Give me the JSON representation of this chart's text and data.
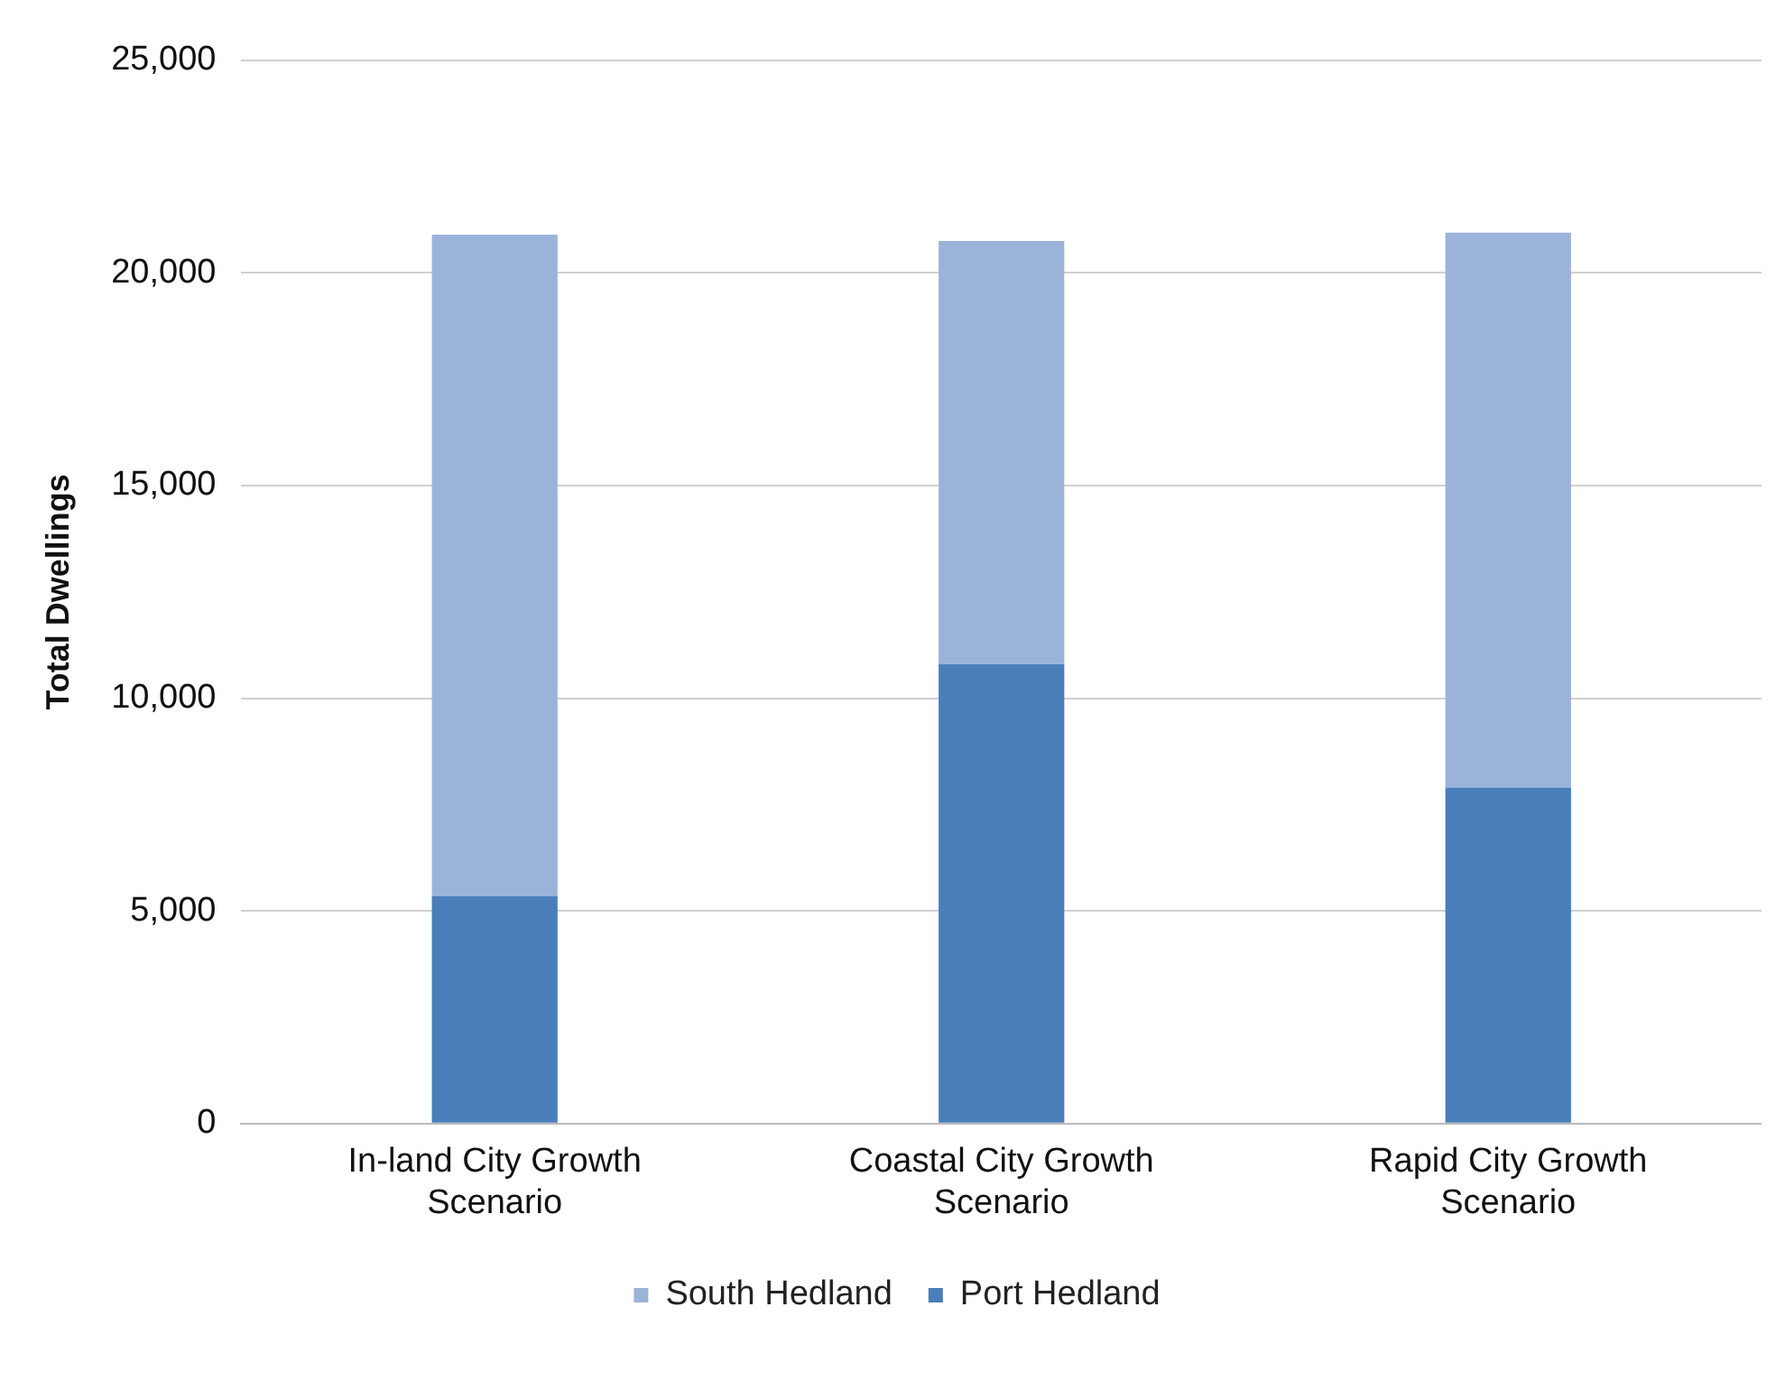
{
  "chart_data": {
    "type": "bar",
    "stacked": true,
    "ylabel": "Total Dwellings",
    "categories": [
      "In-land City Growth Scenario",
      "Coastal City Growth Scenario",
      "Rapid City Growth Scenario"
    ],
    "series": [
      {
        "name": "Port Hedland",
        "color": "#4a7ebb",
        "values": [
          5350,
          10800,
          7900
        ]
      },
      {
        "name": "South Hedland",
        "color": "#9bb3d9",
        "values": [
          15550,
          9950,
          13050
        ]
      }
    ],
    "ylim": [
      0,
      25000
    ],
    "yticks": [
      {
        "value": 0,
        "label": "0"
      },
      {
        "value": 5000,
        "label": "5,000"
      },
      {
        "value": 10000,
        "label": "10,000"
      },
      {
        "value": 15000,
        "label": "15,000"
      },
      {
        "value": 20000,
        "label": "20,000"
      },
      {
        "value": 25000,
        "label": "25,000"
      }
    ],
    "grid": "y",
    "legend": "bottom"
  }
}
